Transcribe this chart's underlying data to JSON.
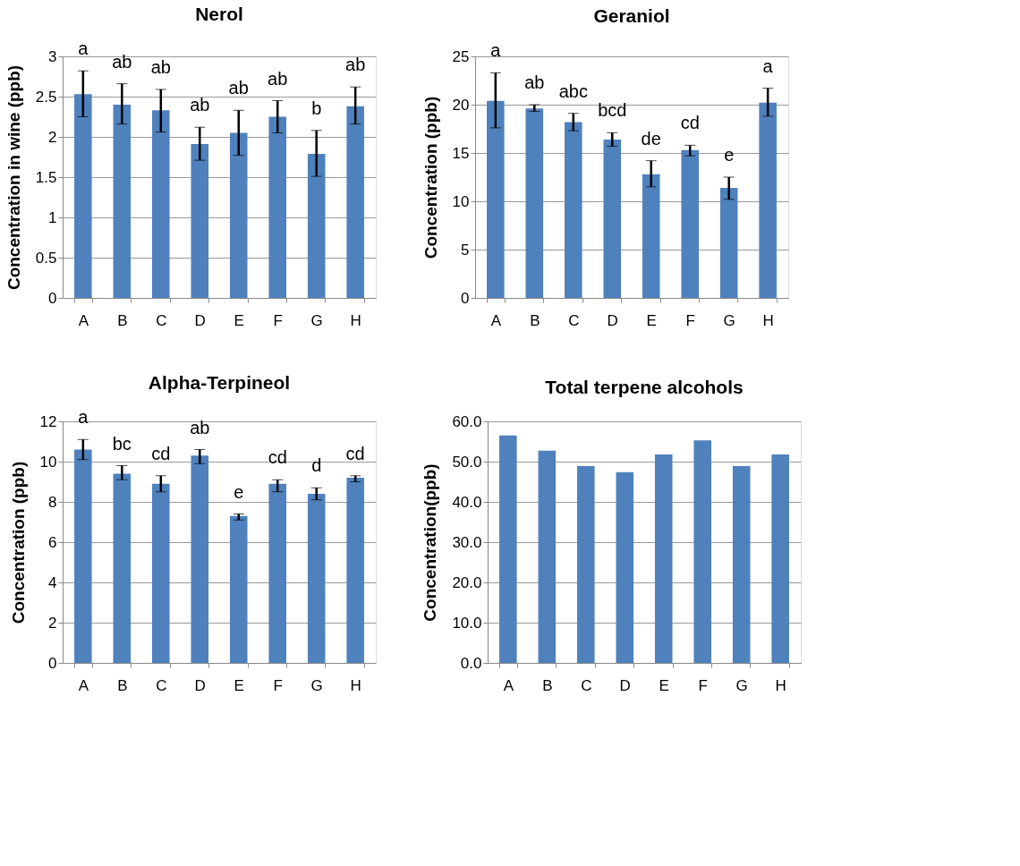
{
  "chart_data": [
    {
      "type": "bar",
      "title": "Nerol",
      "ylabel": "Concentration in wine (ppb)",
      "categories": [
        "A",
        "B",
        "C",
        "D",
        "E",
        "F",
        "G",
        "H"
      ],
      "color": "#4f81bd",
      "grid": "y",
      "values": [
        2.53,
        2.4,
        2.33,
        1.91,
        2.05,
        2.25,
        1.79,
        2.38
      ],
      "errors": [
        [
          2.25,
          2.82
        ],
        [
          2.16,
          2.66
        ],
        [
          2.06,
          2.59
        ],
        [
          1.71,
          2.12
        ],
        [
          1.77,
          2.33
        ],
        [
          2.05,
          2.45
        ],
        [
          1.51,
          2.08
        ],
        [
          2.16,
          2.62
        ]
      ],
      "ylim": [
        0,
        3
      ],
      "yticks": [
        0,
        0.5,
        1,
        1.5,
        2,
        2.5,
        3
      ],
      "annotations": [
        {
          "text": "a",
          "x": "A",
          "y": 2.82
        },
        {
          "text": "ab",
          "x": "B",
          "y": 2.66
        },
        {
          "text": "ab",
          "x": "C",
          "y": 2.59
        },
        {
          "text": "ab",
          "x": "D",
          "y": 2.12
        },
        {
          "text": "ab",
          "x": "E",
          "y": 2.33
        },
        {
          "text": "ab",
          "x": "F",
          "y": 2.45
        },
        {
          "text": "b",
          "x": "G",
          "y": 2.08
        },
        {
          "text": "ab",
          "x": "H",
          "y": 2.62
        }
      ]
    },
    {
      "type": "bar",
      "title": "Geraniol",
      "ylabel": "Concentration (ppb)",
      "categories": [
        "A",
        "B",
        "C",
        "D",
        "E",
        "F",
        "G",
        "H"
      ],
      "color": "#4f81bd",
      "grid": "y",
      "values": [
        20.4,
        19.6,
        18.2,
        16.4,
        12.8,
        15.3,
        11.4,
        20.2
      ],
      "errors": [
        [
          17.6,
          23.3
        ],
        [
          19.3,
          20.0
        ],
        [
          17.3,
          19.1
        ],
        [
          15.7,
          17.1
        ],
        [
          11.5,
          14.2
        ],
        [
          14.7,
          15.8
        ],
        [
          10.2,
          12.5
        ],
        [
          18.8,
          21.7
        ]
      ],
      "ylim": [
        0,
        25
      ],
      "yticks": [
        0,
        5,
        10,
        15,
        20,
        25
      ],
      "annotations": [
        {
          "text": "a",
          "x": "A",
          "y": 23.3
        },
        {
          "text": "ab",
          "x": "B",
          "y": 20.0
        },
        {
          "text": "abc",
          "x": "C",
          "y": 19.1
        },
        {
          "text": "bcd",
          "x": "D",
          "y": 17.1
        },
        {
          "text": "de",
          "x": "E",
          "y": 14.2
        },
        {
          "text": "cd",
          "x": "F",
          "y": 15.8
        },
        {
          "text": "e",
          "x": "G",
          "y": 12.5
        },
        {
          "text": "a",
          "x": "H",
          "y": 21.7
        }
      ]
    },
    {
      "type": "bar",
      "title": "Alpha-Terpineol",
      "ylabel": "Concentration (ppb)",
      "categories": [
        "A",
        "B",
        "C",
        "D",
        "E",
        "F",
        "G",
        "H"
      ],
      "color": "#4f81bd",
      "grid": "y",
      "values": [
        10.6,
        9.4,
        8.9,
        10.3,
        7.3,
        8.9,
        8.4,
        9.2
      ],
      "errors": [
        [
          10.1,
          11.1
        ],
        [
          9.1,
          9.8
        ],
        [
          8.5,
          9.3
        ],
        [
          9.9,
          10.6
        ],
        [
          7.1,
          7.4
        ],
        [
          8.5,
          9.1
        ],
        [
          8.1,
          8.7
        ],
        [
          9.0,
          9.3
        ]
      ],
      "ylim": [
        0,
        12
      ],
      "yticks": [
        0,
        2,
        4,
        6,
        8,
        10,
        12
      ],
      "annotations": [
        {
          "text": "a",
          "x": "A",
          "y": 11.1
        },
        {
          "text": "bc",
          "x": "B",
          "y": 9.8
        },
        {
          "text": "cd",
          "x": "C",
          "y": 9.3
        },
        {
          "text": "ab",
          "x": "D",
          "y": 10.6
        },
        {
          "text": "e",
          "x": "E",
          "y": 7.4
        },
        {
          "text": "cd",
          "x": "F",
          "y": 9.1
        },
        {
          "text": "d",
          "x": "G",
          "y": 8.7
        },
        {
          "text": "cd",
          "x": "H",
          "y": 9.3
        }
      ]
    },
    {
      "type": "bar",
      "title": "Total terpene alcohols",
      "ylabel": "Concentration(ppb)",
      "categories": [
        "A",
        "B",
        "C",
        "D",
        "E",
        "F",
        "G",
        "H"
      ],
      "color": "#4f81bd",
      "grid": "y",
      "values": [
        56.5,
        52.7,
        48.9,
        47.4,
        51.8,
        55.3,
        48.9,
        51.8
      ],
      "ylim": [
        0,
        60
      ],
      "yticks": [
        {
          "value": 0,
          "label": "0.0"
        },
        {
          "value": 10,
          "label": "10.0"
        },
        {
          "value": 20,
          "label": "20.0"
        },
        {
          "value": 30,
          "label": "30.0"
        },
        {
          "value": 40,
          "label": "40.0"
        },
        {
          "value": 50,
          "label": "50.0"
        },
        {
          "value": 60,
          "label": "60.0"
        }
      ]
    }
  ]
}
